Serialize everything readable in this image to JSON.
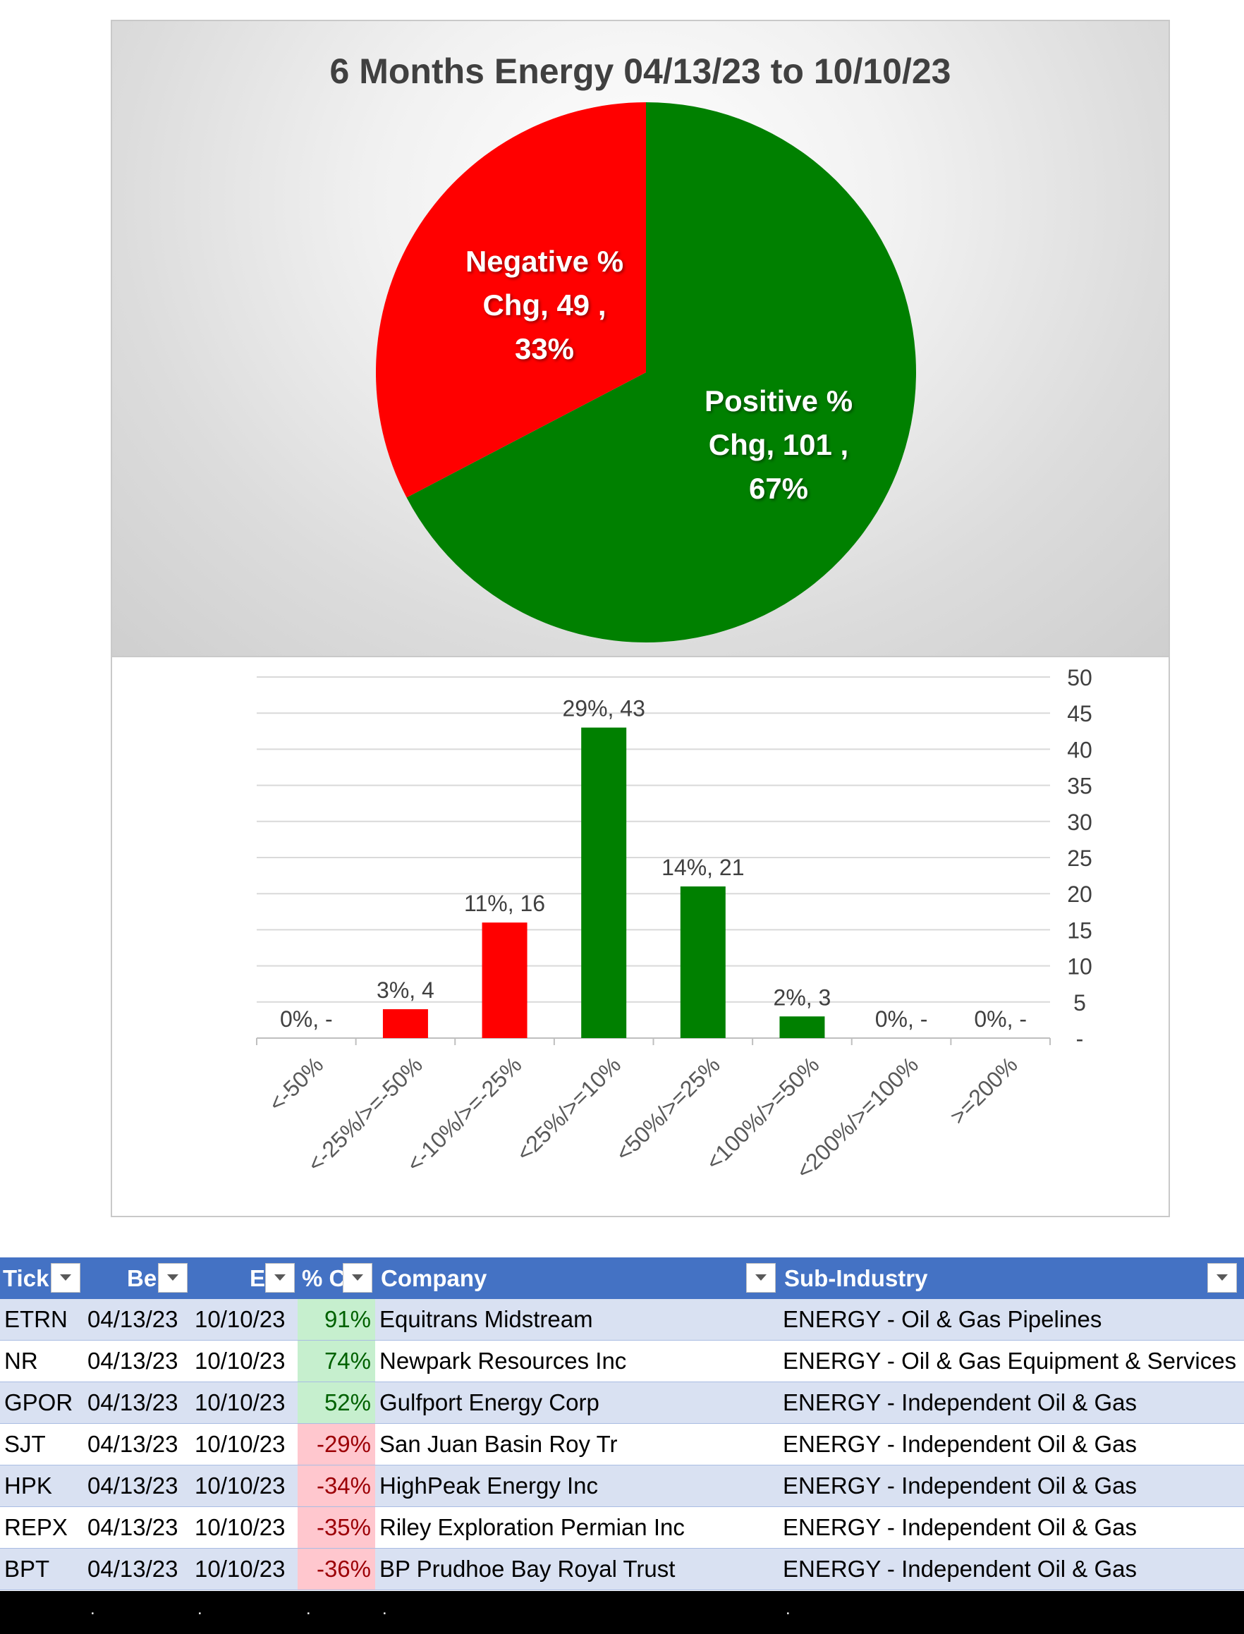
{
  "chart_data": [
    {
      "type": "pie",
      "title": "6 Months Energy 04/13/23 to 10/10/23",
      "slices": [
        {
          "label": "Positive % Chg",
          "value": 101,
          "percent": "67%",
          "color": "#008000",
          "label_lines": [
            "Positive %",
            "Chg,  101 ,",
            "67%"
          ]
        },
        {
          "label": "Negative % Chg",
          "value": 49,
          "percent": "33%",
          "color": "#ff0000",
          "label_lines": [
            "Negative %",
            "Chg,  49 ,",
            "33%"
          ]
        }
      ]
    },
    {
      "type": "bar",
      "title": "",
      "categories": [
        "<-50%",
        "<-25%/>=-50%",
        "<-10%/>=-25%",
        "<25%/>=10%",
        "<50%/>=25%",
        "<100%/>=50%",
        "<200%/>=100%",
        ">=200%"
      ],
      "values": [
        0,
        4,
        16,
        43,
        21,
        3,
        0,
        0
      ],
      "data_labels": [
        "0%,  -",
        "3%,  4",
        "11%,  16",
        "29%,  43",
        "14%,  21",
        "2%,  3",
        "0%,  -",
        "0%,  -"
      ],
      "colors": [
        "#ff0000",
        "#ff0000",
        "#ff0000",
        "#008000",
        "#008000",
        "#008000",
        "#008000",
        "#008000"
      ],
      "y_ticks": [
        "-",
        "5",
        "10",
        "15",
        "20",
        "25",
        "30",
        "35",
        "40",
        "45",
        "50"
      ],
      "ylim": [
        0,
        50
      ],
      "y_axis_side": "right",
      "grid": true
    }
  ],
  "table": {
    "headers": [
      {
        "label": "Tick"
      },
      {
        "label": "Be"
      },
      {
        "label": "E"
      },
      {
        "label": "% C"
      },
      {
        "label": "Company"
      },
      {
        "label": "Sub-Industry"
      }
    ],
    "rows": [
      {
        "ticker": "ETRN",
        "begin": "04/13/23",
        "end": "10/10/23",
        "pct": "91%",
        "sign": "pos",
        "company": "Equitrans Midstream",
        "sub_industry": "ENERGY - Oil & Gas Pipelines"
      },
      {
        "ticker": "NR",
        "begin": "04/13/23",
        "end": "10/10/23",
        "pct": "74%",
        "sign": "pos",
        "company": "Newpark Resources Inc",
        "sub_industry": "ENERGY - Oil & Gas Equipment & Services"
      },
      {
        "ticker": "GPOR",
        "begin": "04/13/23",
        "end": "10/10/23",
        "pct": "52%",
        "sign": "pos",
        "company": "Gulfport Energy Corp",
        "sub_industry": "ENERGY - Independent Oil & Gas"
      },
      {
        "ticker": "SJT",
        "begin": "04/13/23",
        "end": "10/10/23",
        "pct": "-29%",
        "sign": "neg",
        "company": "San Juan Basin Roy Tr",
        "sub_industry": "ENERGY - Independent Oil & Gas"
      },
      {
        "ticker": "HPK",
        "begin": "04/13/23",
        "end": "10/10/23",
        "pct": "-34%",
        "sign": "neg",
        "company": "HighPeak Energy Inc",
        "sub_industry": "ENERGY - Independent Oil & Gas"
      },
      {
        "ticker": "REPX",
        "begin": "04/13/23",
        "end": "10/10/23",
        "pct": "-35%",
        "sign": "neg",
        "company": "Riley Exploration Permian Inc",
        "sub_industry": "ENERGY - Independent Oil & Gas"
      },
      {
        "ticker": "BPT",
        "begin": "04/13/23",
        "end": "10/10/23",
        "pct": "-36%",
        "sign": "neg",
        "company": "BP Prudhoe Bay Royal Trust",
        "sub_industry": "ENERGY - Independent Oil & Gas"
      }
    ]
  },
  "footer": {
    "dots": [
      ".",
      ".",
      ".",
      ".",
      "."
    ]
  },
  "colors": {
    "header_blue": "#4472c4",
    "band_blue": "#d9e1f2",
    "positive_fill": "#c6efce",
    "negative_fill": "#ffc7ce",
    "positive_text": "#006100",
    "negative_text": "#9c0006"
  },
  "icons": {
    "filter": "dropdown-arrow-icon"
  }
}
